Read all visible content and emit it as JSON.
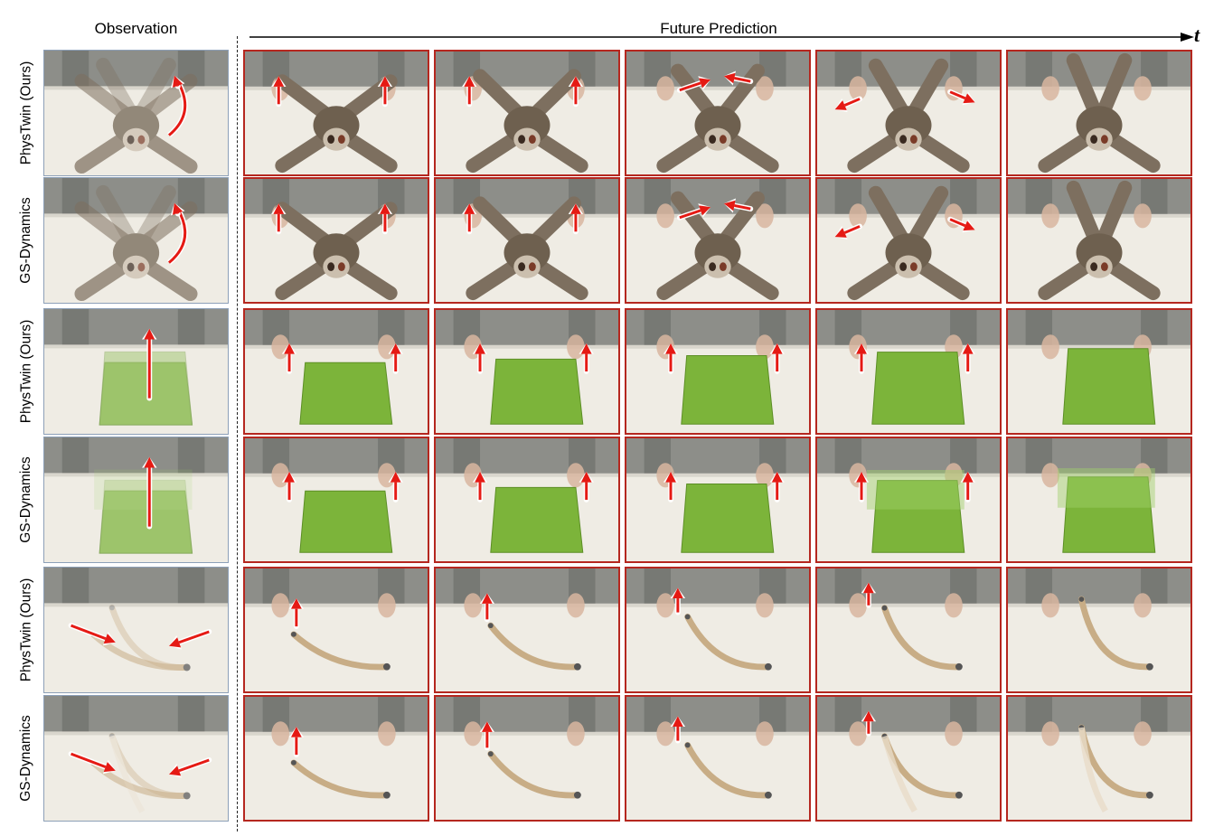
{
  "headers": {
    "observation": "Observation",
    "future": "Future Prediction",
    "time": "t"
  },
  "row_labels": [
    "PhysTwin (Ours)",
    "GS-Dynamics",
    "PhysTwin (Ours)",
    "GS-Dynamics",
    "PhysTwin (Ours)",
    "GS-Dynamics"
  ],
  "objects": [
    "sloth-toy",
    "sloth-toy",
    "cloth",
    "cloth",
    "rope",
    "rope"
  ],
  "colors": {
    "frame_border": "#b5271f",
    "arrow": "#e51a14",
    "cloth": "#7cb43a",
    "rope": "#c8ad86",
    "plush": "#7d6f5f",
    "table": "#efece4",
    "wall": "#8d8e89"
  }
}
